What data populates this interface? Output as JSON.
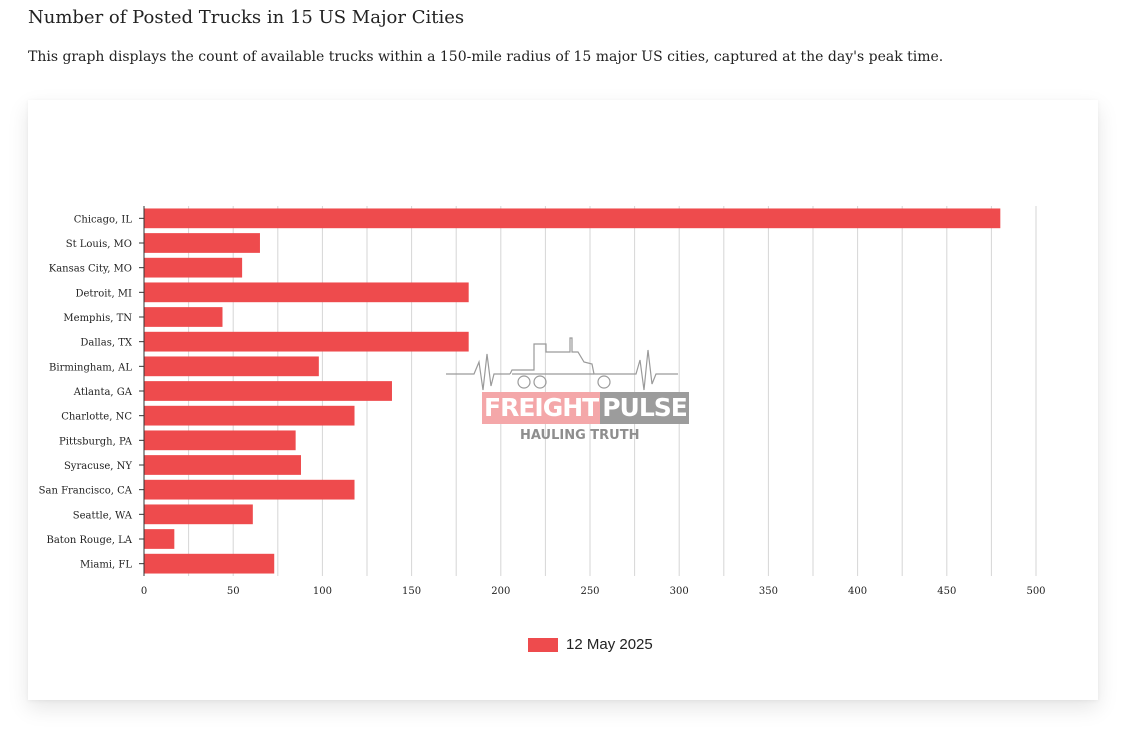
{
  "header": {
    "title": "Number of Posted Trucks in 15 US Major Cities",
    "description": "This graph displays the count of available trucks within a 150-mile radius of 15 major US cities, captured at the day's peak time."
  },
  "watermark": {
    "brand_part1": "FREIGHT",
    "brand_part2": "PULSE",
    "tagline": "HAULING TRUTH"
  },
  "colors": {
    "bar": "#ee4b4d",
    "grid": "#d6d6d6",
    "axis": "#333333"
  },
  "chart_data": {
    "type": "bar",
    "orientation": "horizontal",
    "title": "",
    "xlabel": "",
    "ylabel": "",
    "xlim": [
      0,
      500
    ],
    "x_ticks": [
      0,
      50,
      100,
      150,
      200,
      250,
      300,
      350,
      400,
      450,
      500
    ],
    "grid": true,
    "legend_position": "bottom-center",
    "categories": [
      "Chicago, IL",
      "St Louis, MO",
      "Kansas City, MO",
      "Detroit, MI",
      "Memphis, TN",
      "Dallas, TX",
      "Birmingham, AL",
      "Atlanta, GA",
      "Charlotte, NC",
      "Pittsburgh, PA",
      "Syracuse, NY",
      "San Francisco, CA",
      "Seattle, WA",
      "Baton Rouge, LA",
      "Miami, FL"
    ],
    "series": [
      {
        "name": "12 May 2025",
        "values": [
          480,
          65,
          55,
          182,
          44,
          182,
          98,
          139,
          118,
          85,
          88,
          118,
          61,
          17,
          73
        ]
      }
    ]
  }
}
